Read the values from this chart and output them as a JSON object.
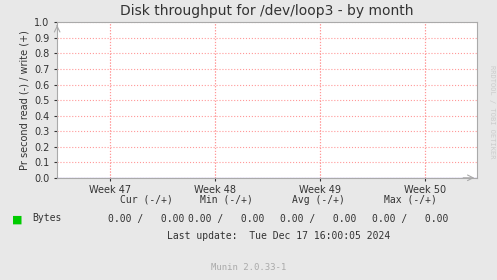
{
  "title": "Disk throughput for /dev/loop3 - by month",
  "ylabel": "Pr second read (-) / write (+)",
  "background_color": "#e8e8e8",
  "plot_background_color": "#ffffff",
  "grid_color": "#ff9999",
  "border_color": "#aaaaaa",
  "line_color": "#0000cc",
  "ylim": [
    0.0,
    1.0
  ],
  "yticks": [
    0.0,
    0.1,
    0.2,
    0.3,
    0.4,
    0.5,
    0.6,
    0.7,
    0.8,
    0.9,
    1.0
  ],
  "xtick_labels": [
    "Week 47",
    "Week 48",
    "Week 49",
    "Week 50"
  ],
  "legend_color": "#00cc00",
  "legend_label": "Bytes",
  "cur_label": "Cur (-/+)",
  "min_label": "Min (-/+)",
  "avg_label": "Avg (-/+)",
  "max_label": "Max (-/+)",
  "cur_val": "0.00 /   0.00",
  "min_val": "0.00 /   0.00",
  "avg_val": "0.00 /   0.00",
  "max_val": "0.00 /   0.00",
  "last_update": "Last update:  Tue Dec 17 16:00:05 2024",
  "munin_version": "Munin 2.0.33-1",
  "side_label": "RRDTOOL / TOBI OETIKER",
  "title_fontsize": 10,
  "ylabel_fontsize": 7,
  "tick_fontsize": 7,
  "footer_fontsize": 7,
  "side_fontsize": 5
}
